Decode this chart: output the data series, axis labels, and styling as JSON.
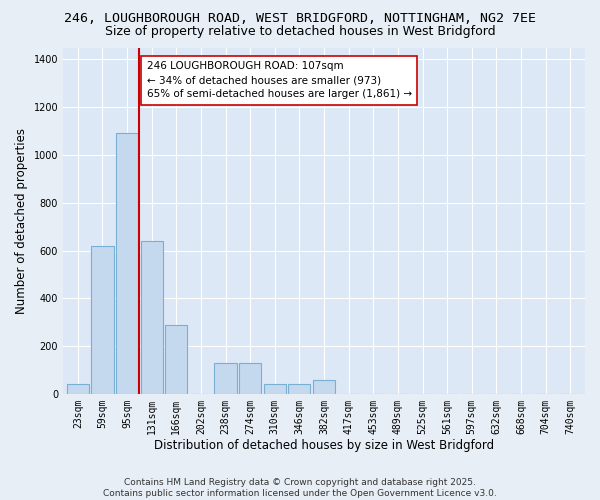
{
  "title_line1": "246, LOUGHBOROUGH ROAD, WEST BRIDGFORD, NOTTINGHAM, NG2 7EE",
  "title_line2": "Size of property relative to detached houses in West Bridgford",
  "xlabel": "Distribution of detached houses by size in West Bridgford",
  "ylabel": "Number of detached properties",
  "categories": [
    "23sqm",
    "59sqm",
    "95sqm",
    "131sqm",
    "166sqm",
    "202sqm",
    "238sqm",
    "274sqm",
    "310sqm",
    "346sqm",
    "382sqm",
    "417sqm",
    "453sqm",
    "489sqm",
    "525sqm",
    "561sqm",
    "597sqm",
    "632sqm",
    "668sqm",
    "704sqm",
    "740sqm"
  ],
  "values": [
    40,
    620,
    1090,
    640,
    290,
    0,
    130,
    130,
    40,
    40,
    60,
    0,
    0,
    0,
    0,
    0,
    0,
    0,
    0,
    0,
    0
  ],
  "bar_color": "#c5d9ee",
  "bar_edge_color": "#7aafd4",
  "vline_x": 2.5,
  "vline_color": "#cc0000",
  "annotation_text": "246 LOUGHBOROUGH ROAD: 107sqm\n← 34% of detached houses are smaller (973)\n65% of semi-detached houses are larger (1,861) →",
  "annotation_box_color": "#ffffff",
  "annotation_box_edge": "#cc0000",
  "ylim": [
    0,
    1450
  ],
  "yticks": [
    0,
    200,
    400,
    600,
    800,
    1000,
    1200,
    1400
  ],
  "background_color": "#e8eef5",
  "plot_bg_color": "#dce8f5",
  "grid_color": "#ffffff",
  "footer": "Contains HM Land Registry data © Crown copyright and database right 2025.\nContains public sector information licensed under the Open Government Licence v3.0.",
  "title_fontsize": 9.5,
  "subtitle_fontsize": 9,
  "axis_label_fontsize": 8.5,
  "tick_fontsize": 7,
  "annotation_fontsize": 7.5
}
